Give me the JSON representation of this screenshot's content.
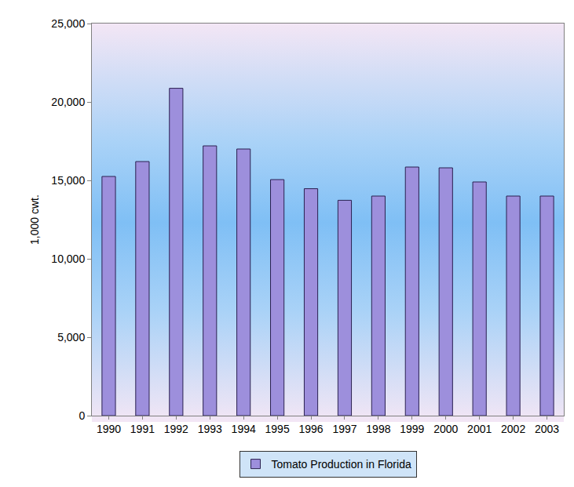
{
  "chart_data": {
    "type": "bar",
    "categories": [
      "1990",
      "1991",
      "1992",
      "1993",
      "1994",
      "1995",
      "1996",
      "1997",
      "1998",
      "1999",
      "2000",
      "2001",
      "2002",
      "2003"
    ],
    "series": [
      {
        "name": "Tomato Production in Florida",
        "color": "#9d8fdc",
        "values": [
          15250,
          16200,
          20870,
          17200,
          17000,
          15050,
          14470,
          13730,
          14000,
          15850,
          15800,
          14900,
          14000,
          14000
        ]
      }
    ],
    "y_label": "1,000 cwt.",
    "ylim": [
      0,
      25000
    ],
    "yticks": [
      0,
      {
        "value": 5000,
        "label": "5,000"
      },
      {
        "value": 10000,
        "label": "10,000"
      },
      {
        "value": 15000,
        "label": "15,000"
      },
      {
        "value": 20000,
        "label": "20,000"
      },
      {
        "value": 25000,
        "label": "25,000"
      }
    ],
    "grid": false,
    "legend": "bottom"
  }
}
